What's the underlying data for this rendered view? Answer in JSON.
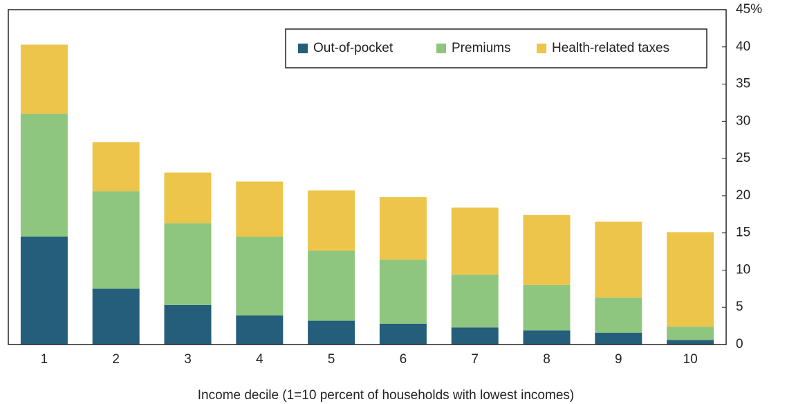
{
  "chart_data": {
    "type": "bar",
    "stacked": true,
    "x_label": "Income decile (1=10 percent of households with lowest incomes)",
    "categories": [
      "1",
      "2",
      "3",
      "4",
      "5",
      "6",
      "7",
      "8",
      "9",
      "10"
    ],
    "series": [
      {
        "name": "Out-of-pocket",
        "color": "#245e7b",
        "values": [
          14.5,
          7.5,
          5.3,
          3.9,
          3.2,
          2.8,
          2.3,
          1.9,
          1.6,
          0.6
        ]
      },
      {
        "name": "Premiums",
        "color": "#8fc67f",
        "values": [
          16.5,
          13.1,
          11.0,
          10.6,
          9.4,
          8.6,
          7.1,
          6.1,
          4.7,
          1.8
        ]
      },
      {
        "name": "Health-related taxes",
        "color": "#ecc54a",
        "values": [
          9.3,
          6.6,
          6.8,
          7.4,
          8.1,
          8.4,
          9.0,
          9.4,
          10.2,
          12.7
        ]
      }
    ],
    "ylim": [
      0,
      45
    ],
    "yticks": [
      0,
      5,
      10,
      15,
      20,
      25,
      30,
      35,
      40,
      {
        "value": 45,
        "label": "45%"
      }
    ],
    "y_axis_side": "right",
    "grid": false,
    "legend": "top-right"
  }
}
